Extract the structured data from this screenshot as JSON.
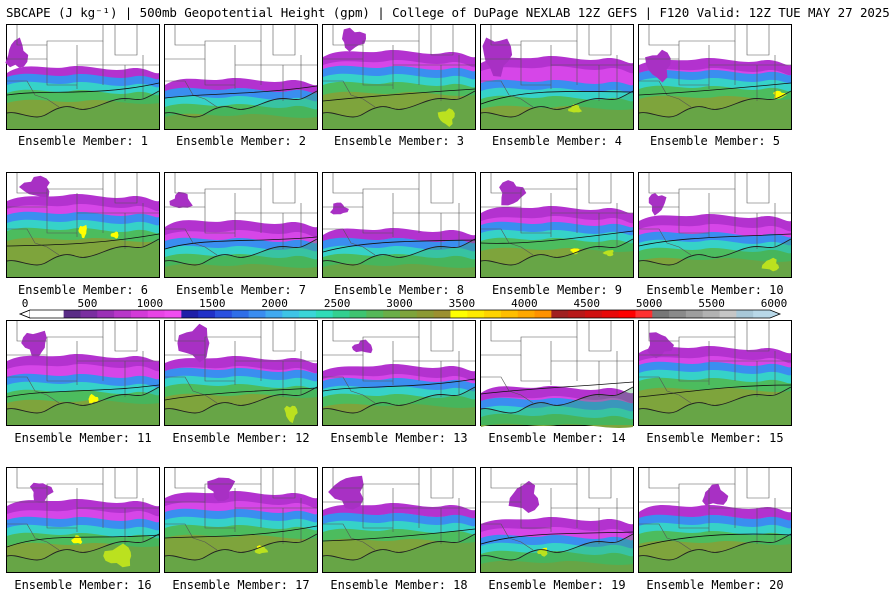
{
  "title": "SBCAPE (J kg⁻¹) | 500mb Geopotential Height (gpm) | College of DuPage NEXLAB 12Z GEFS | F120 Valid: 12Z TUE MAY 27 2025",
  "colorbar": {
    "ticks": [
      "0",
      "500",
      "1000",
      "1500",
      "2000",
      "2500",
      "3000",
      "3500",
      "4000",
      "4500",
      "5000",
      "5500",
      "6000"
    ],
    "colors": [
      "#ffffff",
      "#ffffff",
      "#5a2d86",
      "#7a2fa0",
      "#9b30b6",
      "#b837c9",
      "#d33ad8",
      "#e844e6",
      "#f04df0",
      "#1f1fa8",
      "#2030c8",
      "#2a50e0",
      "#2f6ee8",
      "#3a8df0",
      "#40aaf0",
      "#3ec4e6",
      "#3ad6d8",
      "#2fdcb8",
      "#33d090",
      "#3ec470",
      "#55b858",
      "#6aae48",
      "#7ea43c",
      "#8c9a34",
      "#9c9030",
      "#ffff00",
      "#ffea00",
      "#ffd400",
      "#ffbe00",
      "#ffa800",
      "#ff9200",
      "#a02020",
      "#b81818",
      "#d01010",
      "#e80808",
      "#ff0000",
      "#ff3030",
      "#777777",
      "#8a8a8a",
      "#9e9e9e",
      "#b2b2b2",
      "#c6c6c6",
      "#a8c8d8",
      "#b8d8e8"
    ]
  },
  "members": [
    {
      "label": "Ensemble Member: 1"
    },
    {
      "label": "Ensemble Member: 2"
    },
    {
      "label": "Ensemble Member: 3"
    },
    {
      "label": "Ensemble Member: 4"
    },
    {
      "label": "Ensemble Member: 5"
    },
    {
      "label": "Ensemble Member: 6"
    },
    {
      "label": "Ensemble Member: 7"
    },
    {
      "label": "Ensemble Member: 8"
    },
    {
      "label": "Ensemble Member: 9"
    },
    {
      "label": "Ensemble Member: 10"
    },
    {
      "label": "Ensemble Member: 11"
    },
    {
      "label": "Ensemble Member: 12"
    },
    {
      "label": "Ensemble Member: 13"
    },
    {
      "label": "Ensemble Member: 14"
    },
    {
      "label": "Ensemble Member: 15"
    },
    {
      "label": "Ensemble Member: 16"
    },
    {
      "label": "Ensemble Member: 17"
    },
    {
      "label": "Ensemble Member: 18"
    },
    {
      "label": "Ensemble Member: 19"
    },
    {
      "label": "Ensemble Member: 20"
    }
  ]
}
